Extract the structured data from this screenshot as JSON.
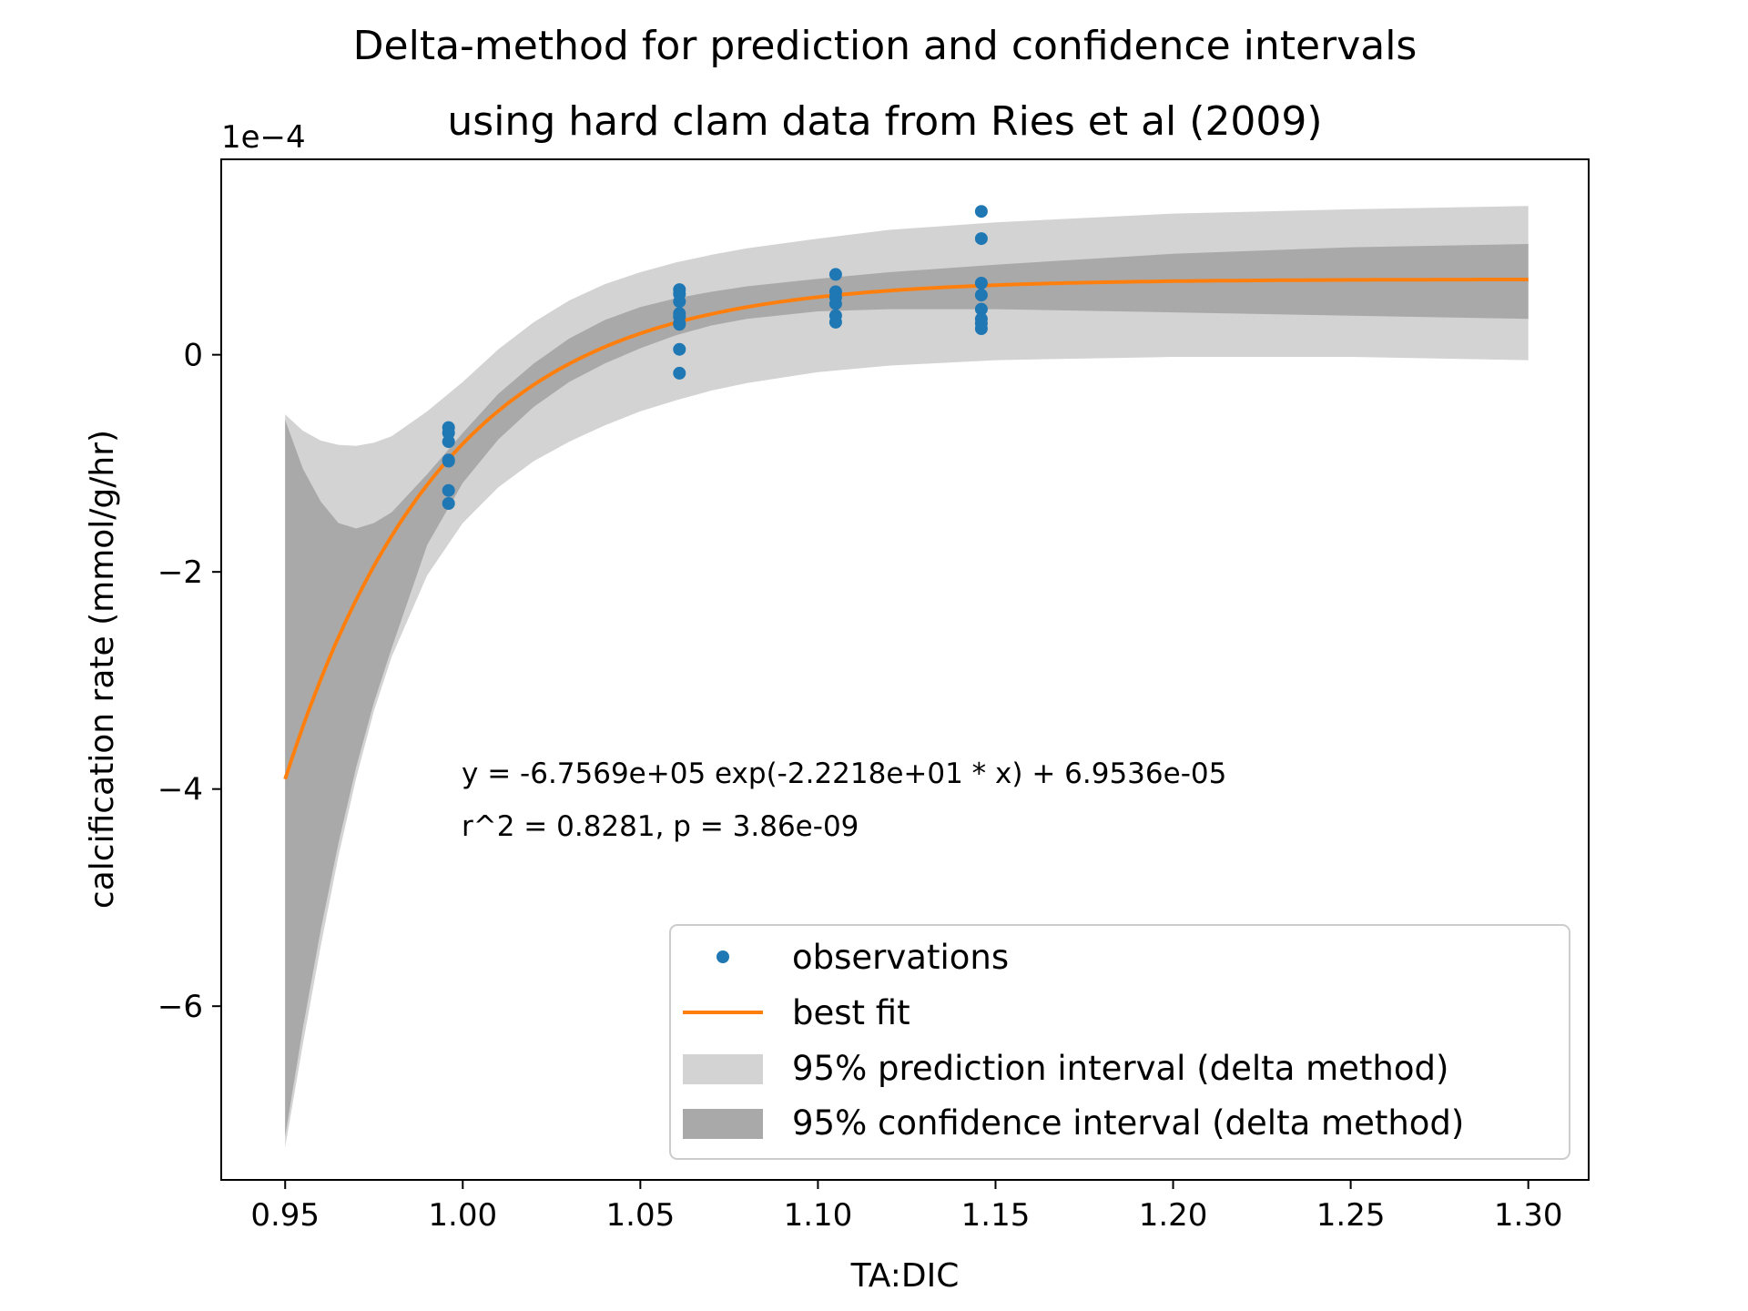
{
  "chart_data": {
    "type": "line",
    "title": [
      "Delta-method for prediction and confidence intervals",
      "using hard clam data from Ries et al (2009)"
    ],
    "xlabel": "TA:DIC",
    "ylabel": "calcification rate (mmol/g/hr)",
    "y_offset_label": "1e−4",
    "xlim": [
      0.932,
      1.317
    ],
    "ylim": [
      -0.00076,
      0.00018
    ],
    "x_ticks": [
      0.95,
      1.0,
      1.05,
      1.1,
      1.15,
      1.2,
      1.25,
      1.3
    ],
    "x_tick_labels": [
      "0.95",
      "1.00",
      "1.05",
      "1.10",
      "1.15",
      "1.20",
      "1.25",
      "1.30"
    ],
    "y_ticks": [
      -0.0006,
      -0.0004,
      -0.0002,
      0
    ],
    "y_tick_labels": [
      "−6",
      "−4",
      "−2",
      "0"
    ],
    "grid": false,
    "legend_position": "lower-right",
    "colors": {
      "observations": "#1f77b4",
      "best_fit": "#ff7f0e",
      "prediction_band": "#d3d3d3",
      "confidence_band": "#a9a9a9"
    },
    "observations": {
      "name": "observations",
      "x": [
        0.996,
        0.996,
        0.996,
        0.996,
        0.996,
        0.996,
        0.996,
        1.061,
        1.061,
        1.061,
        1.061,
        1.061,
        1.061,
        1.061,
        1.061,
        1.061,
        1.105,
        1.105,
        1.105,
        1.105,
        1.105,
        1.105,
        1.146,
        1.146,
        1.146,
        1.146,
        1.146,
        1.146,
        1.146,
        1.146
      ],
      "y": [
        -6.7e-05,
        -7.2e-05,
        -8e-05,
        -9.7e-05,
        -9.8e-05,
        -0.000125,
        -0.000137,
        6e-05,
        5.6e-05,
        4.9e-05,
        3.8e-05,
        3.5e-05,
        2.9e-05,
        2.8e-05,
        5e-06,
        -1.7e-05,
        7.4e-05,
        5.8e-05,
        5.3e-05,
        4.7e-05,
        3.6e-05,
        3e-05,
        0.000132,
        0.000107,
        6.6e-05,
        5.5e-05,
        4.2e-05,
        3.3e-05,
        2.9e-05,
        2.4e-05
      ]
    },
    "best_fit": {
      "name": "best fit",
      "a": -675690,
      "b": -22.218,
      "c": 6.9536e-05,
      "x_range": [
        0.95,
        1.3
      ]
    },
    "prediction_interval": {
      "name": "95% prediction interval (delta method)",
      "x": [
        0.95,
        0.955,
        0.96,
        0.965,
        0.97,
        0.975,
        0.98,
        0.99,
        1.0,
        1.01,
        1.02,
        1.03,
        1.04,
        1.05,
        1.06,
        1.07,
        1.08,
        1.1,
        1.12,
        1.15,
        1.2,
        1.25,
        1.3
      ],
      "lower": [
        -0.00073,
        -0.000635,
        -0.000545,
        -0.000462,
        -0.00039,
        -0.000328,
        -0.000278,
        -0.000203,
        -0.000155,
        -0.000122,
        -9.8e-05,
        -8e-05,
        -6.5e-05,
        -5.2e-05,
        -4.2e-05,
        -3.3e-05,
        -2.6e-05,
        -1.6e-05,
        -1e-05,
        -5e-06,
        -2e-06,
        -2e-06,
        -5e-06
      ],
      "upper": [
        -5.5e-05,
        -7e-05,
        -7.9e-05,
        -8.3e-05,
        -8.4e-05,
        -8.1e-05,
        -7.5e-05,
        -5.2e-05,
        -2.5e-05,
        5e-06,
        3e-05,
        5e-05,
        6.5e-05,
        7.6e-05,
        8.5e-05,
        9.2e-05,
        9.8e-05,
        0.000107,
        0.000115,
        0.000122,
        0.00013,
        0.000134,
        0.000137
      ]
    },
    "confidence_interval": {
      "name": "95% confidence interval (delta method)",
      "x": [
        0.95,
        0.955,
        0.96,
        0.965,
        0.97,
        0.975,
        0.98,
        0.99,
        1.0,
        1.01,
        1.02,
        1.03,
        1.04,
        1.05,
        1.06,
        1.07,
        1.08,
        1.1,
        1.12,
        1.15,
        1.2,
        1.25,
        1.3
      ],
      "lower": [
        -0.00072,
        -0.00062,
        -0.00053,
        -0.00045,
        -0.00038,
        -0.00032,
        -0.00027,
        -0.000175,
        -0.000118,
        -7.8e-05,
        -4.8e-05,
        -2.5e-05,
        -8e-06,
        6e-06,
        1.8e-05,
        2.7e-05,
        3.3e-05,
        4e-05,
        4.2e-05,
        4.2e-05,
        3.9e-05,
        3.6e-05,
        3.3e-05
      ],
      "upper": [
        -6e-05,
        -0.000105,
        -0.000135,
        -0.000155,
        -0.00016,
        -0.000155,
        -0.000145,
        -0.00011,
        -7.2e-05,
        -3.6e-05,
        -8e-06,
        1.5e-05,
        3.2e-05,
        4.4e-05,
        5.2e-05,
        5.8e-05,
        6.3e-05,
        7e-05,
        7.6e-05,
        8.3e-05,
        9.3e-05,
        9.9e-05,
        0.000102
      ]
    },
    "annotations": [
      "y = -6.7569e+05 exp(-2.2218e+01 * x) + 6.9536e-05",
      "r^2 = 0.8281, p = 3.86e-09"
    ]
  }
}
